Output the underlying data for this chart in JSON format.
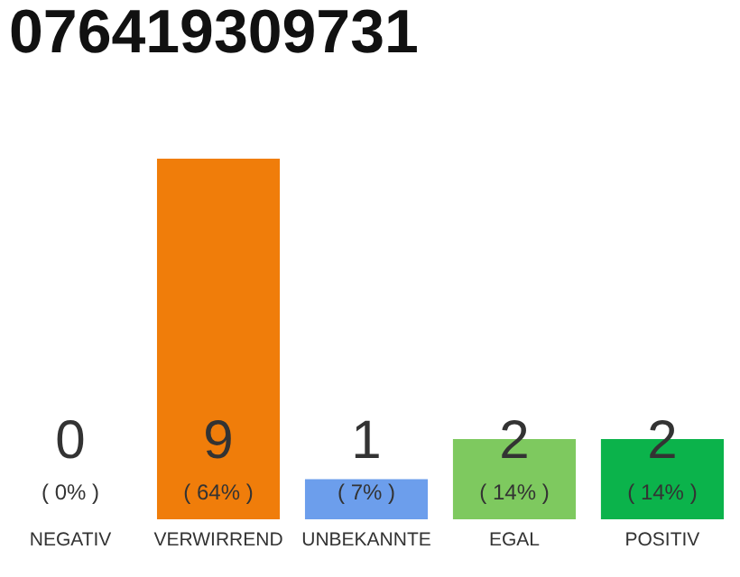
{
  "chart_data": {
    "type": "bar",
    "title": "076419309731",
    "categories": [
      "NEGATIV",
      "VERWIRREND",
      "UNBEKANNTE",
      "EGAL",
      "POSITIV"
    ],
    "values": [
      0,
      9,
      1,
      2,
      2
    ],
    "colors": [
      "#e0e0e0",
      "#f07d0a",
      "#6c9eec",
      "#7ec95f",
      "#0bb34b"
    ],
    "data_labels": true,
    "annotations": [
      "( 0% )",
      "( 64% )",
      "( 7% )",
      "( 14% )",
      "( 14% )"
    ]
  }
}
